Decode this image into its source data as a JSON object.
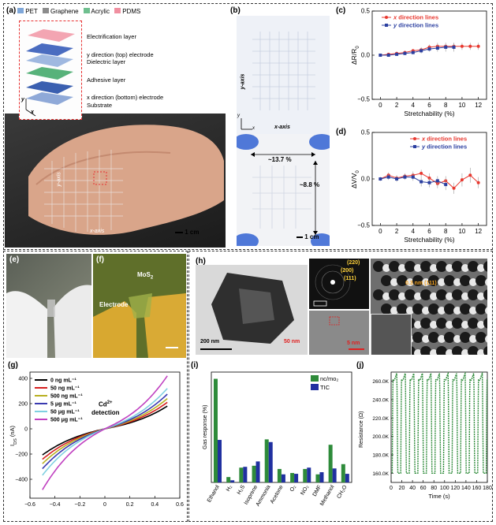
{
  "panels": {
    "a": {
      "label": "(a)",
      "legend": [
        {
          "name": "PET",
          "color": "#7fa7d9"
        },
        {
          "name": "Graphene",
          "color": "#8c8c8c"
        },
        {
          "name": "Acrylic",
          "color": "#6fbf8f"
        },
        {
          "name": "PDMS",
          "color": "#f08fa0"
        }
      ],
      "layers": [
        "Electrification layer",
        "y direction (top) electrode",
        "Dielectric layer",
        "Adhesive layer",
        "x direction (bottom) electrode",
        "Substrate"
      ],
      "y_axis_label": "y-axis",
      "x_axis_label": "x-axis",
      "axis_y": "y",
      "axis_x": "x",
      "scale": "1 cm"
    },
    "b": {
      "label": "(b)",
      "y_axis_label": "y-axis",
      "x_axis_label": "x-axis",
      "axis_y": "y",
      "axis_x": "x",
      "strain_x": "~13.7 %",
      "strain_y": "~8.8 %",
      "scale": "1 cm"
    },
    "c": {
      "label": "(c)"
    },
    "d": {
      "label": "(d)"
    },
    "e": {
      "label": "(e)"
    },
    "f": {
      "label": "(f)",
      "mos2": "MoS",
      "mos2_sub": "2",
      "electrode": "Electrode"
    },
    "g": {
      "label": "(g)",
      "cd_label_1": "Cd",
      "cd_label_sup": "2+",
      "cd_label_2": "detection"
    },
    "h": {
      "label": "(h)",
      "scale_1": "200 nm",
      "scale_2": "50 nm",
      "scale_3": "5 nm",
      "plane_220": "(220)",
      "plane_200": "(200)",
      "plane_111": "(111)",
      "d_spacing": "0.3 nm (111)"
    },
    "i": {
      "label": "(i)"
    },
    "j": {
      "label": "(j)"
    }
  },
  "chart_data": [
    {
      "id": "c",
      "type": "line",
      "x": [
        0,
        1,
        2,
        3,
        4,
        5,
        6,
        7,
        8,
        9,
        10,
        11,
        12
      ],
      "series": [
        {
          "name": "x direction lines",
          "color": "#e8382f",
          "values": [
            0.0,
            0.01,
            0.02,
            0.03,
            0.05,
            0.06,
            0.09,
            0.1,
            0.1,
            0.1,
            0.1,
            0.1,
            0.1
          ],
          "errors": [
            0.01,
            0.01,
            0.015,
            0.02,
            0.02,
            0.03,
            0.03,
            0.04,
            0.04,
            0.04,
            0.04,
            0.04,
            0.04
          ]
        },
        {
          "name": "y direction lines",
          "color": "#2b3fa0",
          "values": [
            0.0,
            0.0,
            0.01,
            0.02,
            0.03,
            0.05,
            0.07,
            0.08,
            0.09,
            0.09,
            null,
            null,
            null
          ],
          "errors": [
            0.01,
            0.01,
            0.015,
            0.02,
            0.02,
            0.03,
            0.03,
            0.04,
            0.05,
            0.05,
            null,
            null,
            null
          ]
        }
      ],
      "xlabel": "Stretchability (%)",
      "ylabel": "ΔR/R",
      "ylabel_sub": "0",
      "xlim": [
        -1,
        13
      ],
      "ylim": [
        -0.5,
        0.5
      ],
      "xticks": [
        0,
        2,
        4,
        6,
        8,
        10,
        12
      ],
      "yticks": [
        -0.5,
        0.0,
        0.5
      ],
      "ytick_labels": [
        "−0.5",
        "0.0",
        "0.5"
      ],
      "legend": "top-left"
    },
    {
      "id": "d",
      "type": "line",
      "x": [
        0,
        1,
        2,
        3,
        4,
        5,
        6,
        7,
        8,
        9,
        10,
        11,
        12
      ],
      "series": [
        {
          "name": "x direction lines",
          "color": "#e8382f",
          "values": [
            0.0,
            0.04,
            0.01,
            0.03,
            0.04,
            0.06,
            0.01,
            -0.05,
            -0.02,
            -0.1,
            -0.01,
            0.04,
            -0.04
          ],
          "errors": [
            0.02,
            0.03,
            0.03,
            0.03,
            0.04,
            0.04,
            0.05,
            0.05,
            0.05,
            0.06,
            0.07,
            0.08,
            0.06
          ]
        },
        {
          "name": "y direction lines",
          "color": "#2b3fa0",
          "values": [
            0.0,
            0.02,
            0.0,
            0.02,
            0.02,
            -0.03,
            -0.04,
            -0.02,
            -0.06,
            null,
            null,
            null,
            null
          ],
          "errors": [
            0.02,
            0.03,
            0.03,
            0.03,
            0.04,
            0.05,
            0.05,
            0.05,
            0.06,
            null,
            null,
            null,
            null
          ]
        }
      ],
      "xlabel": "Stretchability (%)",
      "ylabel": "ΔV/V",
      "ylabel_sub": "0",
      "xlim": [
        -1,
        13
      ],
      "ylim": [
        -0.5,
        0.5
      ],
      "xticks": [
        0,
        2,
        4,
        6,
        8,
        10,
        12
      ],
      "yticks": [
        -0.5,
        0.0,
        0.5
      ],
      "ytick_labels": [
        "−0.5",
        "0.0",
        "0.5"
      ],
      "legend": "top-right"
    },
    {
      "id": "g",
      "type": "line",
      "xlabel": "V (V)",
      "ylabel": "I",
      "ylabel_sub": "DS",
      "ylabel_unit": " (nA)",
      "xlim": [
        -0.6,
        0.6
      ],
      "ylim": [
        -550,
        450
      ],
      "xticks": [
        -0.6,
        -0.4,
        -0.2,
        0,
        0.2,
        0.4,
        0.6
      ],
      "xtick_labels": [
        "−0.6",
        "−0.4",
        "−0.2",
        "0",
        "0.2",
        "0.4",
        "0.6"
      ],
      "yticks": [
        -400,
        -200,
        0,
        200,
        400
      ],
      "ytick_labels": [
        "−400",
        "−200",
        "0",
        "200",
        "400"
      ],
      "series": [
        {
          "name": "0 ng mL⁻¹",
          "color": "#000000",
          "k": 180
        },
        {
          "name": "50 ng mL⁻¹",
          "color": "#d62020",
          "k": 210
        },
        {
          "name": "500 ng mL⁻¹",
          "color": "#b8b020",
          "k": 240
        },
        {
          "name": "5 μg mL⁻¹",
          "color": "#3a3ab0",
          "k": 275
        },
        {
          "name": "50 μg mL⁻¹",
          "color": "#7fd0e0",
          "k": 320
        },
        {
          "name": "500 μg mL⁻¹",
          "color": "#c040c0",
          "k": 420
        }
      ],
      "legend": "top-left"
    },
    {
      "id": "i",
      "type": "bar",
      "categories": [
        "Ethanol",
        "H₂",
        "H₂S",
        "Isoprene",
        "Ammonia",
        "Acetone",
        "O₂",
        "NO₂",
        "DMF",
        "Methanol",
        "CH₂O"
      ],
      "series": [
        {
          "name": "nc/mo₂",
          "color": "#2e8b3a",
          "values": [
            385,
            20,
            55,
            62,
            160,
            50,
            35,
            50,
            30,
            140,
            68
          ]
        },
        {
          "name": "TIC",
          "color": "#2030a0",
          "values": [
            158,
            8,
            58,
            78,
            150,
            30,
            32,
            55,
            38,
            52,
            32
          ]
        }
      ],
      "xlabel": "",
      "ylabel": "Gas response (%)",
      "ylim": [
        0,
        410
      ],
      "legend": "top-right"
    },
    {
      "id": "j",
      "type": "line",
      "xlabel": "Time (s)",
      "ylabel": "Resistance (Ω)",
      "xlim": [
        0,
        180
      ],
      "ylim": [
        150000,
        270000
      ],
      "xticks": [
        0,
        20,
        40,
        60,
        80,
        100,
        120,
        140,
        160,
        180
      ],
      "yticks": [
        160000,
        180000,
        200000,
        220000,
        240000,
        260000
      ],
      "ytick_labels": [
        "160.0K",
        "180.0K",
        "200.0K",
        "220.0K",
        "240.0K",
        "260.0K"
      ],
      "cycles": 11,
      "low": 160000,
      "high": 265000,
      "color": "#2e8b3a"
    }
  ]
}
